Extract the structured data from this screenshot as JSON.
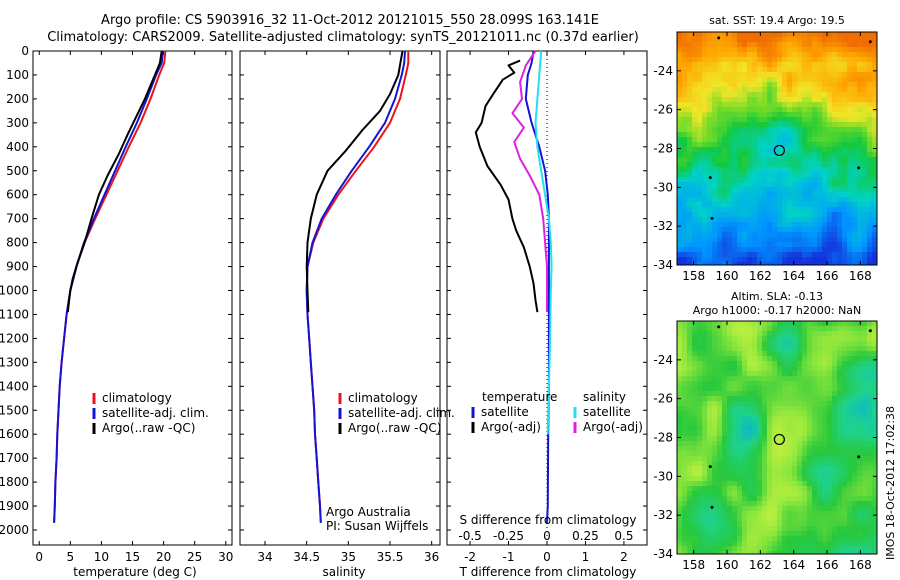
{
  "header": {
    "line1": "Argo profile: CS 5903916_32 11-Oct-2012 20121015_550 28.099S 163.141E",
    "line2": "Climatology: CARS2009. Satellite-adjusted climatology: synTS_20121011.nc (0.37d earlier)"
  },
  "colors": {
    "climatology": "#e8141e",
    "satellite": "#1414d2",
    "argo": "#000000",
    "satellite_salinity": "#22e0f0",
    "argo_salinity": "#e020e0"
  },
  "watermark": "IMOS 18-Oct-2012 17:02:38",
  "chart_data": [
    {
      "type": "line",
      "id": "temperature",
      "xlabel": "temperature (deg C)",
      "ylabel": "",
      "xlim": [
        -1,
        31
      ],
      "ylim": [
        0,
        2100
      ],
      "y_reversed": true,
      "xticks": [
        0,
        5,
        10,
        15,
        20,
        25,
        30
      ],
      "yticks": [
        0,
        100,
        200,
        300,
        400,
        500,
        600,
        700,
        800,
        900,
        1000,
        1100,
        1200,
        1300,
        1400,
        1500,
        1600,
        1700,
        1800,
        1900,
        2000
      ],
      "legend": [
        "climatology",
        "satellite-adj. clim.",
        "Argo(..raw -QC)"
      ],
      "series": [
        {
          "name": "climatology",
          "color_key": "climatology",
          "points": [
            [
              20.3,
              0
            ],
            [
              20.1,
              50
            ],
            [
              19.3,
              100
            ],
            [
              17.9,
              200
            ],
            [
              16.3,
              300
            ],
            [
              14.4,
              400
            ],
            [
              12.6,
              500
            ],
            [
              10.8,
              600
            ],
            [
              9.0,
              700
            ],
            [
              7.3,
              800
            ],
            [
              6.0,
              900
            ],
            [
              5.0,
              1000
            ],
            [
              4.4,
              1100
            ],
            [
              4.0,
              1200
            ],
            [
              3.6,
              1300
            ],
            [
              3.3,
              1400
            ],
            [
              3.1,
              1500
            ],
            [
              2.9,
              1600
            ],
            [
              2.8,
              1700
            ],
            [
              2.6,
              1800
            ],
            [
              2.5,
              1900
            ],
            [
              2.4,
              1970
            ]
          ]
        },
        {
          "name": "satellite-adj. clim.",
          "color_key": "satellite",
          "points": [
            [
              19.9,
              0
            ],
            [
              19.7,
              50
            ],
            [
              18.8,
              100
            ],
            [
              17.3,
              200
            ],
            [
              15.7,
              300
            ],
            [
              13.9,
              400
            ],
            [
              12.2,
              500
            ],
            [
              10.5,
              600
            ],
            [
              8.8,
              700
            ],
            [
              7.2,
              800
            ],
            [
              6.0,
              900
            ],
            [
              5.0,
              1000
            ],
            [
              4.4,
              1100
            ],
            [
              4.0,
              1200
            ],
            [
              3.6,
              1300
            ],
            [
              3.3,
              1400
            ],
            [
              3.1,
              1500
            ],
            [
              2.9,
              1600
            ],
            [
              2.8,
              1700
            ],
            [
              2.6,
              1800
            ],
            [
              2.5,
              1900
            ],
            [
              2.4,
              1970
            ]
          ]
        },
        {
          "name": "Argo(..raw -QC)",
          "color_key": "argo",
          "points": [
            [
              19.7,
              0
            ],
            [
              19.4,
              50
            ],
            [
              18.6,
              100
            ],
            [
              17.0,
              200
            ],
            [
              15.5,
              280
            ],
            [
              14.2,
              350
            ],
            [
              12.8,
              430
            ],
            [
              11.0,
              520
            ],
            [
              9.6,
              600
            ],
            [
              8.4,
              700
            ],
            [
              7.3,
              800
            ],
            [
              6.2,
              880
            ],
            [
              5.4,
              950
            ],
            [
              5.0,
              1000
            ],
            [
              4.6,
              1090
            ]
          ]
        }
      ]
    },
    {
      "type": "line",
      "id": "salinity",
      "xlabel": "salinity",
      "ylabel": "",
      "xlim": [
        33.7,
        36.1
      ],
      "ylim": [
        0,
        2100
      ],
      "y_reversed": true,
      "xticks": [
        34,
        34.5,
        35,
        35.5,
        36
      ],
      "legend": [
        "climatology",
        "satellite-adj. clim.",
        "Argo(..raw -QC)"
      ],
      "annotation": [
        "Argo Australia",
        "PI: Susan Wijffels"
      ],
      "series": [
        {
          "name": "climatology",
          "color_key": "climatology",
          "points": [
            [
              35.72,
              0
            ],
            [
              35.72,
              50
            ],
            [
              35.69,
              100
            ],
            [
              35.62,
              200
            ],
            [
              35.5,
              300
            ],
            [
              35.31,
              400
            ],
            [
              35.09,
              500
            ],
            [
              34.88,
              600
            ],
            [
              34.7,
              700
            ],
            [
              34.58,
              800
            ],
            [
              34.51,
              900
            ],
            [
              34.5,
              1000
            ],
            [
              34.51,
              1100
            ],
            [
              34.53,
              1200
            ],
            [
              34.55,
              1300
            ],
            [
              34.57,
              1400
            ],
            [
              34.59,
              1500
            ],
            [
              34.6,
              1600
            ],
            [
              34.62,
              1700
            ],
            [
              34.64,
              1800
            ],
            [
              34.66,
              1900
            ],
            [
              34.67,
              1970
            ]
          ]
        },
        {
          "name": "satellite-adj. clim.",
          "color_key": "satellite",
          "points": [
            [
              35.68,
              0
            ],
            [
              35.67,
              50
            ],
            [
              35.64,
              100
            ],
            [
              35.56,
              200
            ],
            [
              35.44,
              300
            ],
            [
              35.25,
              400
            ],
            [
              35.04,
              500
            ],
            [
              34.85,
              600
            ],
            [
              34.68,
              700
            ],
            [
              34.57,
              800
            ],
            [
              34.51,
              900
            ],
            [
              34.5,
              1000
            ],
            [
              34.51,
              1100
            ],
            [
              34.53,
              1200
            ],
            [
              34.55,
              1300
            ],
            [
              34.57,
              1400
            ],
            [
              34.59,
              1500
            ],
            [
              34.6,
              1600
            ],
            [
              34.62,
              1700
            ],
            [
              34.64,
              1800
            ],
            [
              34.66,
              1900
            ],
            [
              34.67,
              1970
            ]
          ]
        },
        {
          "name": "Argo(..raw -QC)",
          "color_key": "argo",
          "points": [
            [
              35.65,
              0
            ],
            [
              35.63,
              40
            ],
            [
              35.6,
              100
            ],
            [
              35.5,
              180
            ],
            [
              35.38,
              250
            ],
            [
              35.17,
              330
            ],
            [
              34.96,
              420
            ],
            [
              34.75,
              500
            ],
            [
              34.62,
              600
            ],
            [
              34.55,
              700
            ],
            [
              34.51,
              800
            ],
            [
              34.5,
              900
            ],
            [
              34.51,
              1000
            ],
            [
              34.52,
              1090
            ]
          ]
        }
      ]
    },
    {
      "type": "line",
      "id": "difference",
      "xlabel": "T difference from climatology",
      "xlabel_top": "S difference from climatology",
      "xlim": [
        -2.6,
        2.6
      ],
      "ylim": [
        0,
        2100
      ],
      "y_reversed": true,
      "xticks": [
        -2,
        -1,
        0,
        1,
        2
      ],
      "sticks_labels": [
        "-0.5",
        "-0.25",
        "0",
        "0.25",
        "0.5"
      ],
      "sticks_values": [
        -2,
        -1,
        0,
        1,
        2
      ],
      "legend_left_title": "temperature",
      "legend_right_title": "salinity",
      "legend": [
        "satellite",
        "Argo(-adj)",
        "satellite",
        "Argo(-adj)"
      ],
      "series": [
        {
          "name": "satellite",
          "group": "temperature",
          "color_key": "satellite",
          "points": [
            [
              -0.35,
              0
            ],
            [
              -0.4,
              50
            ],
            [
              -0.5,
              100
            ],
            [
              -0.55,
              200
            ],
            [
              -0.4,
              300
            ],
            [
              -0.2,
              400
            ],
            [
              -0.05,
              500
            ],
            [
              0.02,
              600
            ],
            [
              0.05,
              700
            ],
            [
              0.05,
              800
            ],
            [
              0.05,
              900
            ],
            [
              0.05,
              1000
            ],
            [
              0.05,
              1200
            ],
            [
              0.05,
              1400
            ],
            [
              0.03,
              1600
            ],
            [
              0.02,
              1900
            ],
            [
              0.0,
              1970
            ]
          ]
        },
        {
          "name": "Argo(-adj)",
          "group": "temperature",
          "color_key": "argo",
          "points": [
            [
              -0.7,
              40
            ],
            [
              -1.0,
              60
            ],
            [
              -0.85,
              90
            ],
            [
              -1.15,
              120
            ],
            [
              -1.4,
              180
            ],
            [
              -1.6,
              230
            ],
            [
              -1.7,
              300
            ],
            [
              -1.85,
              340
            ],
            [
              -1.75,
              400
            ],
            [
              -1.55,
              480
            ],
            [
              -1.2,
              560
            ],
            [
              -1.0,
              620
            ],
            [
              -0.9,
              700
            ],
            [
              -0.8,
              750
            ],
            [
              -0.6,
              820
            ],
            [
              -0.45,
              900
            ],
            [
              -0.35,
              970
            ],
            [
              -0.3,
              1040
            ],
            [
              -0.25,
              1090
            ]
          ]
        },
        {
          "name": "satellite",
          "group": "salinity",
          "color_key": "satellite_salinity",
          "points": [
            [
              -0.15,
              0
            ],
            [
              -0.2,
              100
            ],
            [
              -0.25,
              200
            ],
            [
              -0.3,
              300
            ],
            [
              -0.25,
              400
            ],
            [
              -0.15,
              500
            ],
            [
              -0.05,
              600
            ],
            [
              0.05,
              700
            ],
            [
              0.1,
              800
            ],
            [
              0.12,
              900
            ],
            [
              0.1,
              1000
            ],
            [
              0.08,
              1200
            ],
            [
              0.05,
              1400
            ],
            [
              0.03,
              1500
            ],
            [
              0.02,
              1600
            ]
          ]
        },
        {
          "name": "Argo(-adj)",
          "group": "salinity",
          "color_key": "argo_salinity",
          "points": [
            [
              -0.3,
              0
            ],
            [
              -0.55,
              60
            ],
            [
              -0.7,
              130
            ],
            [
              -0.65,
              200
            ],
            [
              -0.9,
              260
            ],
            [
              -0.6,
              320
            ],
            [
              -0.85,
              380
            ],
            [
              -0.7,
              450
            ],
            [
              -0.45,
              520
            ],
            [
              -0.2,
              600
            ],
            [
              -0.1,
              700
            ],
            [
              -0.05,
              800
            ],
            [
              0.0,
              900
            ],
            [
              0.0,
              1000
            ],
            [
              0.0,
              1090
            ]
          ]
        }
      ]
    },
    {
      "type": "heatmap",
      "id": "sst_map",
      "title": "sat. SST: 19.4  Argo: 19.5",
      "xlim": [
        157,
        169
      ],
      "ylim": [
        -34,
        -22
      ],
      "xticks": [
        158,
        160,
        162,
        164,
        166,
        168
      ],
      "yticks": [
        -24,
        -26,
        -28,
        -30,
        -32,
        -34
      ],
      "marker": {
        "lon": 163.141,
        "lat": -28.099
      }
    },
    {
      "type": "heatmap",
      "id": "sla_map",
      "title": "Altim. SLA: -0.13",
      "subtitle": "Argo h1000: -0.17 h2000: NaN",
      "xlim": [
        157,
        169
      ],
      "ylim": [
        -34,
        -22
      ],
      "xticks": [
        158,
        160,
        162,
        164,
        166,
        168
      ],
      "yticks": [
        -24,
        -26,
        -28,
        -30,
        -32,
        -34
      ],
      "marker": {
        "lon": 163.141,
        "lat": -28.099
      }
    }
  ]
}
